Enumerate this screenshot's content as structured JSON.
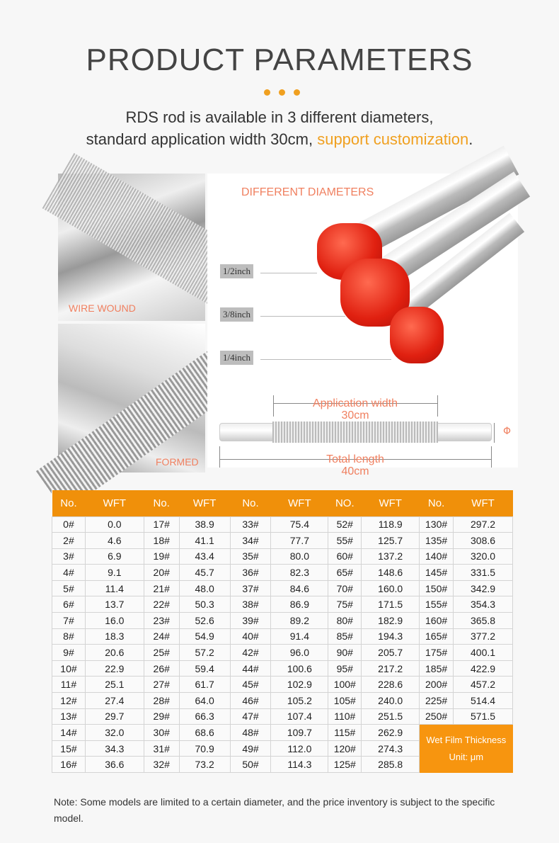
{
  "header": {
    "title": "PRODUCT PARAMETERS",
    "subtitle_line1": "RDS rod is available in 3 different diameters,",
    "subtitle_line2_prefix": "standard application width 30cm, ",
    "subtitle_highlight": "support customization",
    "subtitle_suffix": "."
  },
  "colors": {
    "accent": "#f0900a",
    "label": "#f08060",
    "cap": "#e02010"
  },
  "images": {
    "wire_wound_label": "WIRE WOUND",
    "formed_label": "FORMED",
    "diameters_title": "DIFFERENT DIAMETERS",
    "diameters": [
      "1/2inch",
      "3/8inch",
      "1/4inch"
    ],
    "application_width_label": "Application width",
    "application_width_value": "30cm",
    "total_length_label": "Total length",
    "total_length_value": "40cm",
    "phi_symbol": "Φ"
  },
  "table": {
    "headers": [
      "No.",
      "WFT",
      "No.",
      "WFT",
      "No.",
      "WFT",
      "NO.",
      "WFT",
      "No.",
      "WFT"
    ],
    "rows": [
      [
        "0#",
        "0.0",
        "17#",
        "38.9",
        "33#",
        "75.4",
        "52#",
        "118.9",
        "130#",
        "297.2"
      ],
      [
        "2#",
        "4.6",
        "18#",
        "41.1",
        "34#",
        "77.7",
        "55#",
        "125.7",
        "135#",
        "308.6"
      ],
      [
        "3#",
        "6.9",
        "19#",
        "43.4",
        "35#",
        "80.0",
        "60#",
        "137.2",
        "140#",
        "320.0"
      ],
      [
        "4#",
        "9.1",
        "20#",
        "45.7",
        "36#",
        "82.3",
        "65#",
        "148.6",
        "145#",
        "331.5"
      ],
      [
        "5#",
        "11.4",
        "21#",
        "48.0",
        "37#",
        "84.6",
        "70#",
        "160.0",
        "150#",
        "342.9"
      ],
      [
        "6#",
        "13.7",
        "22#",
        "50.3",
        "38#",
        "86.9",
        "75#",
        "171.5",
        "155#",
        "354.3"
      ],
      [
        "7#",
        "16.0",
        "23#",
        "52.6",
        "39#",
        "89.2",
        "80#",
        "182.9",
        "160#",
        "365.8"
      ],
      [
        "8#",
        "18.3",
        "24#",
        "54.9",
        "40#",
        "91.4",
        "85#",
        "194.3",
        "165#",
        "377.2"
      ],
      [
        "9#",
        "20.6",
        "25#",
        "57.2",
        "42#",
        "96.0",
        "90#",
        "205.7",
        "175#",
        "400.1"
      ],
      [
        "10#",
        "22.9",
        "26#",
        "59.4",
        "44#",
        "100.6",
        "95#",
        "217.2",
        "185#",
        "422.9"
      ],
      [
        "11#",
        "25.1",
        "27#",
        "61.7",
        "45#",
        "102.9",
        "100#",
        "228.6",
        "200#",
        "457.2"
      ],
      [
        "12#",
        "27.4",
        "28#",
        "64.0",
        "46#",
        "105.2",
        "105#",
        "240.0",
        "225#",
        "514.4"
      ],
      [
        "13#",
        "29.7",
        "29#",
        "66.3",
        "47#",
        "107.4",
        "110#",
        "251.5",
        "250#",
        "571.5"
      ],
      [
        "14#",
        "32.0",
        "30#",
        "68.6",
        "48#",
        "109.7",
        "115#",
        "262.9"
      ],
      [
        "15#",
        "34.3",
        "31#",
        "70.9",
        "49#",
        "112.0",
        "120#",
        "274.3"
      ],
      [
        "16#",
        "36.6",
        "32#",
        "73.2",
        "50#",
        "114.3",
        "125#",
        "285.8"
      ]
    ],
    "note_line1": "Wet Film Thickness",
    "note_line2": "Unit: μm"
  },
  "footnote": "Note: Some models are limited to a certain diameter, and the price inventory is subject to the specific model."
}
